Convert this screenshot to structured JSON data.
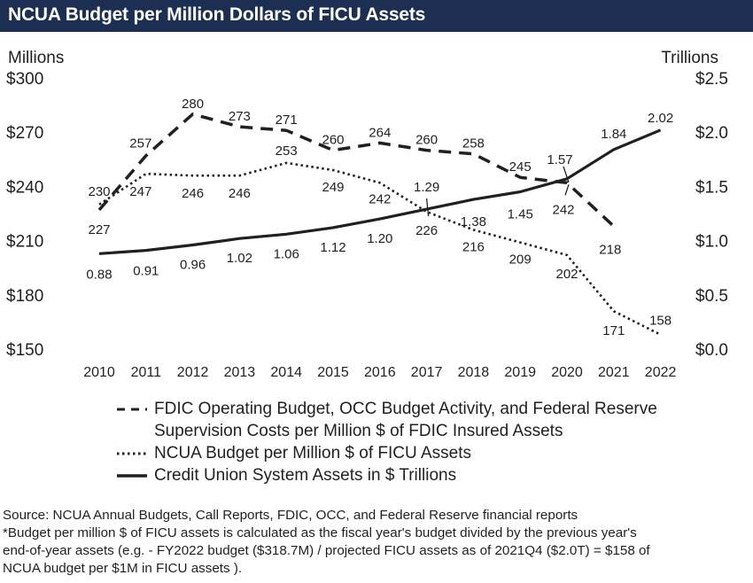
{
  "title": "NCUA Budget per Million Dollars of FICU Assets",
  "chart_data": {
    "type": "line",
    "x": [
      "2010",
      "2011",
      "2012",
      "2013",
      "2014",
      "2015",
      "2016",
      "2017",
      "2018",
      "2019",
      "2020",
      "2021",
      "2022"
    ],
    "left_axis": {
      "label": "Millions",
      "ticks": [
        "$300",
        "$270",
        "$240",
        "$210",
        "$180",
        "$150"
      ],
      "range": [
        150,
        300
      ]
    },
    "right_axis": {
      "label": "Trillions",
      "ticks": [
        "$2.5",
        "$2.0",
        "$1.5",
        "$1.0",
        "$0.5",
        "$0.0"
      ],
      "range": [
        0,
        2.5
      ]
    },
    "series": [
      {
        "name": "FDIC Operating Budget, OCC Budget Activity, and Federal Reserve Supervision Costs per Million $ of FDIC Insured Assets",
        "style": "dashed",
        "axis": "left",
        "values": [
          227,
          257,
          280,
          273,
          271,
          260,
          264,
          260,
          258,
          245,
          242,
          218,
          null
        ],
        "labels": [
          "227",
          "257",
          "280",
          "273",
          "271",
          "260",
          "264",
          "260",
          "258",
          "245",
          "242",
          "218",
          ""
        ]
      },
      {
        "name": "NCUA Budget per Million $ of FICU Assets",
        "style": "dotted",
        "axis": "left",
        "values": [
          230,
          247,
          246,
          246,
          253,
          249,
          242,
          226,
          216,
          209,
          202,
          171,
          158
        ],
        "labels": [
          "230",
          "247",
          "246",
          "246",
          "253",
          "249",
          "242",
          "226",
          "216",
          "209",
          "202",
          "171",
          "158"
        ]
      },
      {
        "name": "Credit Union System Assets in $ Trillions",
        "style": "solid",
        "axis": "right",
        "values": [
          0.88,
          0.91,
          0.96,
          1.02,
          1.06,
          1.12,
          1.2,
          1.29,
          1.38,
          1.45,
          1.57,
          1.84,
          2.02
        ],
        "labels": [
          "0.88",
          "0.91",
          "0.96",
          "1.02",
          "1.06",
          "1.12",
          "1.20",
          "1.29",
          "1.38",
          "1.45",
          "1.57",
          "1.84",
          "2.02"
        ]
      }
    ],
    "legend": [
      "FDIC Operating Budget, OCC Budget Activity, and Federal Reserve",
      "Supervision Costs per Million $ of FDIC Insured Assets",
      "NCUA Budget per Million $ of FICU Assets",
      "Credit Union System Assets in $ Trillions"
    ],
    "grid": false,
    "legend_position": "bottom"
  },
  "notes": [
    "Source: NCUA Annual Budgets, Call Reports, FDIC, OCC, and Federal Reserve financial reports",
    "*Budget per million $ of FICU assets is calculated as the fiscal year's budget divided by the previous year's",
    "end-of-year assets (e.g. - FY2022 budget ($318.7M) / projected FICU assets as of 2021Q4 ($2.0T) = $158 of",
    "NCUA budget per $1M in FICU assets )."
  ],
  "colors": {
    "title_bg": "#1c2f52",
    "title_fg": "#ffffff",
    "ink": "#231f20"
  }
}
